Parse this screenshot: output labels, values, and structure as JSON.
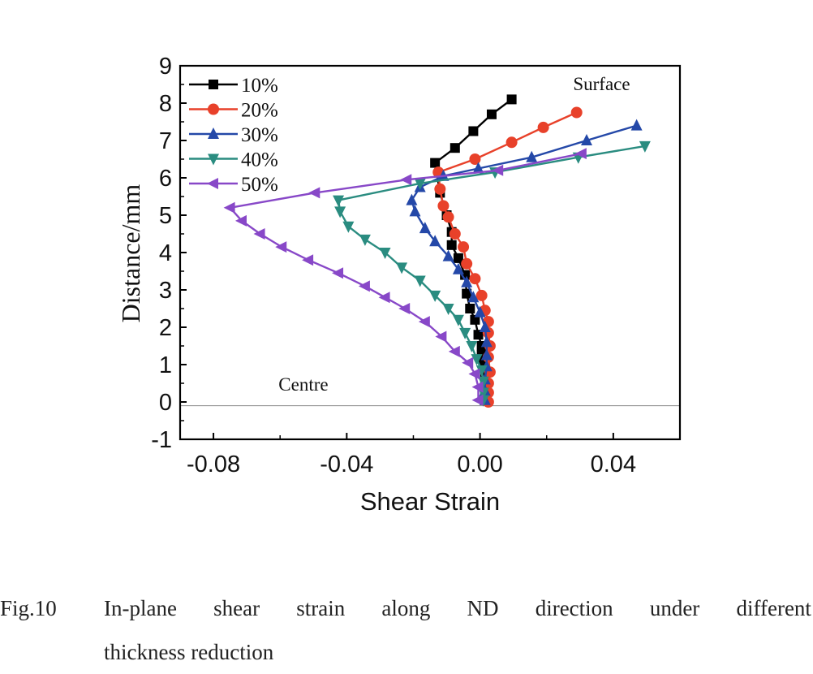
{
  "caption": {
    "number": "Fig.10",
    "words_line1": [
      "In-plane",
      "shear",
      "strain",
      "along",
      "ND",
      "direction",
      "under",
      "different"
    ],
    "line2": "thickness reduction"
  },
  "chart_data": {
    "type": "line",
    "xlabel": "Shear Strain",
    "ylabel": "Distance/mm",
    "xlim": [
      -0.09,
      0.06
    ],
    "ylim": [
      -1,
      9
    ],
    "x_ticks": [
      -0.08,
      -0.04,
      0.0,
      0.04
    ],
    "x_tick_labels": [
      "-0.08",
      "-0.04",
      "0.00",
      "0.04"
    ],
    "y_ticks": [
      -1,
      0,
      1,
      2,
      3,
      4,
      5,
      6,
      7,
      8,
      9
    ],
    "y_tick_labels": [
      "-1",
      "0",
      "1",
      "2",
      "3",
      "4",
      "5",
      "6",
      "7",
      "8",
      "9"
    ],
    "grid": false,
    "legend_position": "top-left",
    "reference_line_y": -0.1,
    "annotations": [
      {
        "text": "Surface",
        "x": 0.0365,
        "y": 8.35
      },
      {
        "text": "Centre",
        "x": -0.053,
        "y": 0.3
      }
    ],
    "series": [
      {
        "name": "10%",
        "color": "#000000",
        "marker": "square",
        "points": [
          [
            0.0095,
            8.1
          ],
          [
            0.0035,
            7.7
          ],
          [
            -0.002,
            7.25
          ],
          [
            -0.0075,
            6.8
          ],
          [
            -0.0135,
            6.4
          ],
          [
            -0.012,
            5.6
          ],
          [
            -0.01,
            5.0
          ],
          [
            -0.0085,
            4.55
          ],
          [
            -0.0085,
            4.2
          ],
          [
            -0.0065,
            3.85
          ],
          [
            -0.0045,
            3.4
          ],
          [
            -0.004,
            2.9
          ],
          [
            -0.003,
            2.5
          ],
          [
            -0.0015,
            2.2
          ],
          [
            -0.0005,
            1.8
          ],
          [
            0.0005,
            1.5
          ],
          [
            0.0005,
            1.25
          ],
          [
            0.001,
            1.0
          ],
          [
            0.0015,
            0.75
          ],
          [
            0.0015,
            0.5
          ],
          [
            0.0015,
            0.3
          ],
          [
            0.0015,
            0.05
          ]
        ]
      },
      {
        "name": "20%",
        "color": "#e8412a",
        "marker": "circle",
        "points": [
          [
            0.029,
            7.75
          ],
          [
            0.019,
            7.35
          ],
          [
            0.0095,
            6.95
          ],
          [
            -0.0015,
            6.5
          ],
          [
            -0.0125,
            6.15
          ],
          [
            -0.012,
            5.7
          ],
          [
            -0.011,
            5.25
          ],
          [
            -0.0095,
            4.95
          ],
          [
            -0.0075,
            4.5
          ],
          [
            -0.005,
            4.15
          ],
          [
            -0.004,
            3.7
          ],
          [
            -0.0015,
            3.3
          ],
          [
            0.0005,
            2.85
          ],
          [
            0.0015,
            2.45
          ],
          [
            0.0025,
            2.15
          ],
          [
            0.0025,
            1.85
          ],
          [
            0.003,
            1.5
          ],
          [
            0.0025,
            1.2
          ],
          [
            0.003,
            0.8
          ],
          [
            0.0025,
            0.5
          ],
          [
            0.0025,
            0.25
          ],
          [
            0.0025,
            0.0
          ]
        ]
      },
      {
        "name": "30%",
        "color": "#2448a8",
        "marker": "triangle-up",
        "points": [
          [
            0.047,
            7.4
          ],
          [
            0.032,
            7.0
          ],
          [
            0.0155,
            6.55
          ],
          [
            -0.0005,
            6.25
          ],
          [
            -0.011,
            6.05
          ],
          [
            -0.018,
            5.75
          ],
          [
            -0.0205,
            5.4
          ],
          [
            -0.0195,
            5.1
          ],
          [
            -0.0165,
            4.65
          ],
          [
            -0.0135,
            4.3
          ],
          [
            -0.0095,
            3.9
          ],
          [
            -0.0065,
            3.55
          ],
          [
            -0.004,
            3.2
          ],
          [
            -0.002,
            2.8
          ],
          [
            0.0,
            2.4
          ],
          [
            0.0015,
            2.0
          ],
          [
            0.002,
            1.6
          ],
          [
            0.002,
            1.25
          ],
          [
            0.002,
            0.95
          ],
          [
            0.0015,
            0.6
          ],
          [
            0.0015,
            0.3
          ],
          [
            0.0015,
            0.05
          ]
        ]
      },
      {
        "name": "40%",
        "color": "#2a8c80",
        "marker": "triangle-down",
        "points": [
          [
            0.0495,
            6.85
          ],
          [
            0.0295,
            6.55
          ],
          [
            0.0045,
            6.15
          ],
          [
            -0.018,
            5.85
          ],
          [
            -0.0425,
            5.4
          ],
          [
            -0.042,
            5.1
          ],
          [
            -0.0395,
            4.7
          ],
          [
            -0.0345,
            4.35
          ],
          [
            -0.0285,
            4.0
          ],
          [
            -0.0235,
            3.6
          ],
          [
            -0.018,
            3.25
          ],
          [
            -0.0135,
            2.85
          ],
          [
            -0.0095,
            2.5
          ],
          [
            -0.0065,
            2.2
          ],
          [
            -0.0045,
            1.85
          ],
          [
            -0.0025,
            1.5
          ],
          [
            -0.001,
            1.15
          ],
          [
            0.0005,
            0.85
          ],
          [
            0.001,
            0.55
          ],
          [
            0.001,
            0.25
          ],
          [
            0.001,
            0.05
          ]
        ]
      },
      {
        "name": "50%",
        "color": "#8848c8",
        "marker": "triangle-left",
        "points": [
          [
            0.0305,
            6.65
          ],
          [
            0.0055,
            6.2
          ],
          [
            -0.022,
            5.95
          ],
          [
            -0.0495,
            5.6
          ],
          [
            -0.075,
            5.2
          ],
          [
            -0.0715,
            4.85
          ],
          [
            -0.066,
            4.5
          ],
          [
            -0.0595,
            4.15
          ],
          [
            -0.0515,
            3.8
          ],
          [
            -0.0425,
            3.45
          ],
          [
            -0.0345,
            3.1
          ],
          [
            -0.0285,
            2.8
          ],
          [
            -0.0225,
            2.5
          ],
          [
            -0.0165,
            2.15
          ],
          [
            -0.0115,
            1.75
          ],
          [
            -0.0075,
            1.35
          ],
          [
            -0.0035,
            1.05
          ],
          [
            -0.0015,
            0.75
          ],
          [
            -0.0005,
            0.4
          ],
          [
            -0.0005,
            0.05
          ]
        ]
      }
    ]
  }
}
